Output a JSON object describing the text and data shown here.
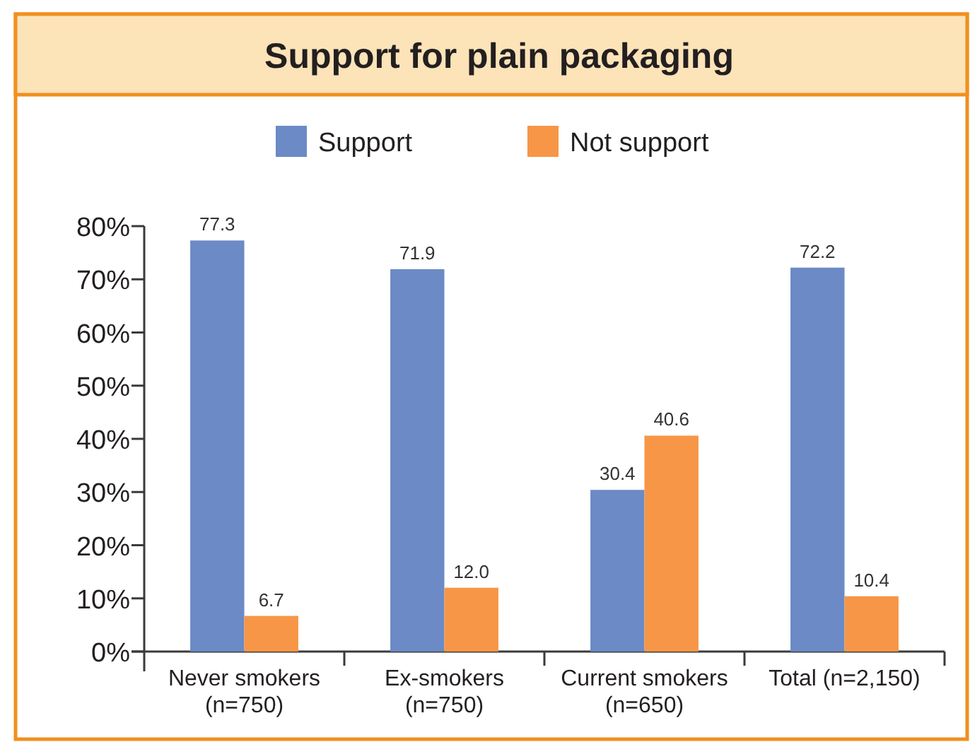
{
  "chart_data": {
    "type": "bar",
    "title": "Support for plain packaging",
    "categories": [
      "Never smokers\n(n=750)",
      "Ex-smokers\n(n=750)",
      "Current smokers\n(n=650)",
      "Total (n=2,150)"
    ],
    "series": [
      {
        "name": "Support",
        "color": "#6b8ac6",
        "values": [
          77.3,
          71.9,
          30.4,
          72.2
        ],
        "value_labels": [
          "77.3",
          "71.9",
          "30.4",
          "72.2"
        ]
      },
      {
        "name": "Not support",
        "color": "#f79646",
        "values": [
          6.7,
          12.0,
          40.6,
          10.4
        ],
        "value_labels": [
          "6.7",
          "12.0",
          "40.6",
          "10.4"
        ]
      }
    ],
    "ylim": [
      0,
      80
    ],
    "yticks": [
      {
        "value": 0,
        "label": "0%"
      },
      {
        "value": 10,
        "label": "10%"
      },
      {
        "value": 20,
        "label": "20%"
      },
      {
        "value": 30,
        "label": "30%"
      },
      {
        "value": 40,
        "label": "40%"
      },
      {
        "value": 50,
        "label": "50%"
      },
      {
        "value": 60,
        "label": "60%"
      },
      {
        "value": 70,
        "label": "70%"
      },
      {
        "value": 80,
        "label": "80%"
      }
    ],
    "legend": "top"
  }
}
